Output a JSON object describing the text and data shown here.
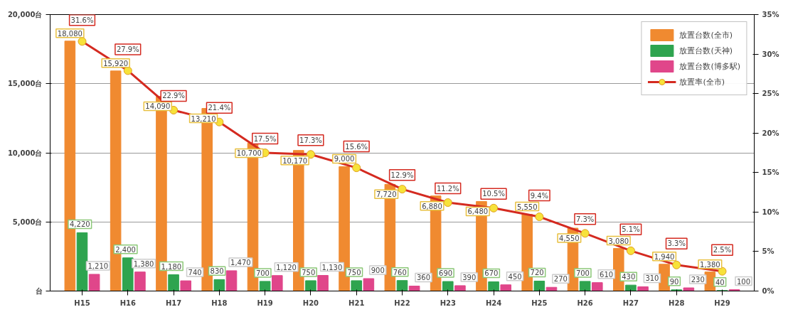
{
  "chart_data": {
    "type": "bar",
    "categories": [
      "H15",
      "H16",
      "H17",
      "H18",
      "H19",
      "H20",
      "H21",
      "H22",
      "H23",
      "H24",
      "H25",
      "H26",
      "H27",
      "H28",
      "H29"
    ],
    "series": [
      {
        "name": "放置台数(全市)",
        "color": "#f08a30",
        "values": [
          18080,
          15920,
          14090,
          13210,
          10700,
          10170,
          9000,
          7720,
          6880,
          6480,
          5550,
          4550,
          3080,
          1940,
          1380
        ],
        "value_labels": [
          "18,080",
          "15,920",
          "14,090",
          "13,210",
          "10,700",
          "10,170",
          "9,000",
          "7,720",
          "6,880",
          "6,480",
          "5,550",
          "4,550",
          "3,080",
          "1,940",
          "1,380"
        ]
      },
      {
        "name": "放置台数(天神)",
        "color": "#2ea44f",
        "values": [
          4220,
          2400,
          1180,
          830,
          700,
          750,
          750,
          760,
          690,
          670,
          720,
          700,
          430,
          90,
          40
        ],
        "value_labels": [
          "4,220",
          "2,400",
          "1,180",
          "830",
          "700",
          "750",
          "750",
          "760",
          "690",
          "670",
          "720",
          "700",
          "430",
          "90",
          "40"
        ]
      },
      {
        "name": "放置台数(博多駅)",
        "color": "#e0468a",
        "values": [
          1210,
          1380,
          740,
          1470,
          1120,
          1130,
          900,
          360,
          390,
          450,
          270,
          610,
          310,
          230,
          100
        ],
        "value_labels": [
          "1,210",
          "1,380",
          "740",
          "1,470",
          "1,120",
          "1,130",
          "900",
          "360",
          "390",
          "450",
          "270",
          "610",
          "310",
          "230",
          "100"
        ]
      },
      {
        "name": "放置率(全市)",
        "type": "line",
        "axis": "y2",
        "color": "#d42a20",
        "marker": "circle",
        "values": [
          31.6,
          27.9,
          22.9,
          21.4,
          17.5,
          17.3,
          15.6,
          12.9,
          11.2,
          10.5,
          9.4,
          7.3,
          5.1,
          3.3,
          2.5
        ],
        "value_labels": [
          "31.6%",
          "27.9%",
          "22.9%",
          "21.4%",
          "17.5%",
          "17.3%",
          "15.6%",
          "12.9%",
          "11.2%",
          "10.5%",
          "9.4%",
          "7.3%",
          "5.1%",
          "3.3%",
          "2.5%"
        ]
      }
    ],
    "ylim": [
      0,
      20000
    ],
    "yticks": [
      {
        "value": 0,
        "label": "台"
      },
      {
        "value": 5000,
        "label": "5,000台"
      },
      {
        "value": 10000,
        "label": "10,000台"
      },
      {
        "value": 15000,
        "label": "15,000台"
      },
      {
        "value": 20000,
        "label": "20,000台"
      }
    ],
    "y2lim": [
      0,
      35
    ],
    "y2ticks": [
      {
        "value": 0,
        "label": "0%"
      },
      {
        "value": 5,
        "label": "5%"
      },
      {
        "value": 10,
        "label": "10%"
      },
      {
        "value": 15,
        "label": "15%"
      },
      {
        "value": 20,
        "label": "20%"
      },
      {
        "value": 25,
        "label": "25%"
      },
      {
        "value": 30,
        "label": "30%"
      },
      {
        "value": 35,
        "label": "35%"
      }
    ],
    "grid": "y",
    "legend": "top right"
  }
}
